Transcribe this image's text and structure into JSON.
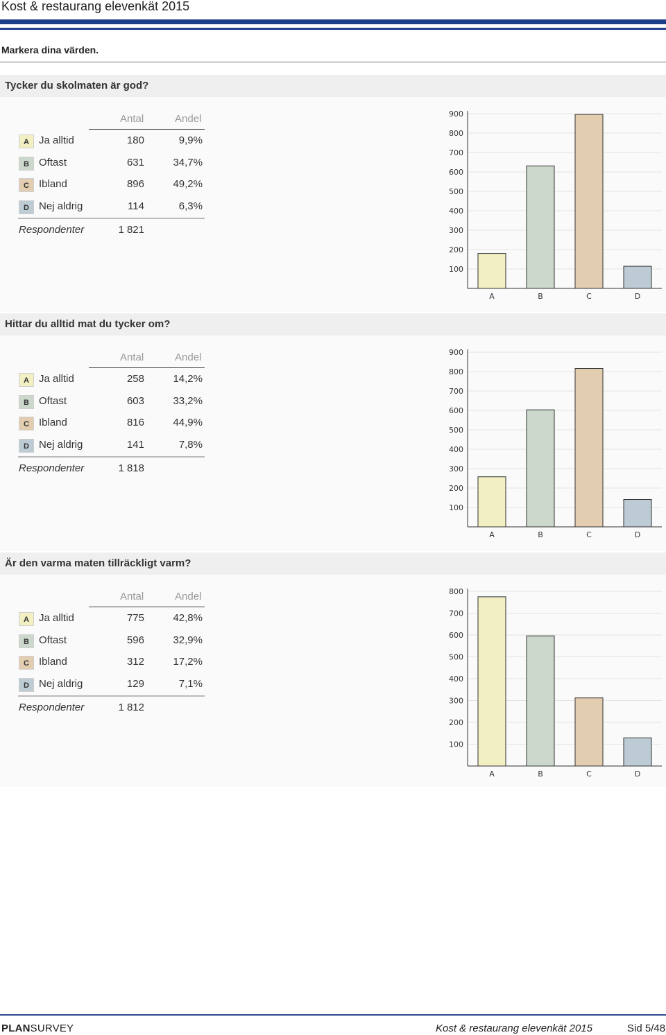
{
  "document": {
    "title": "Kost & restaurang elevenkät 2015",
    "instruction": "Markera dina värden."
  },
  "table_headers": {
    "count": "Antal",
    "share": "Andel",
    "respondents": "Respondenter"
  },
  "colors": {
    "accent": "#1d3f8a",
    "option_A": "#f2efc3",
    "option_B": "#cdd8cc",
    "option_C": "#e3cdb0",
    "option_D": "#bccbd4"
  },
  "questions": [
    {
      "title": "Tycker du skolmaten är god?",
      "options": [
        {
          "code": "A",
          "label": "Ja alltid",
          "count": "180",
          "share": "9,9%"
        },
        {
          "code": "B",
          "label": "Oftast",
          "count": "631",
          "share": "34,7%"
        },
        {
          "code": "C",
          "label": "Ibland",
          "count": "896",
          "share": "49,2%"
        },
        {
          "code": "D",
          "label": "Nej aldrig",
          "count": "114",
          "share": "6,3%"
        }
      ],
      "respondents": "1 821"
    },
    {
      "title": "Hittar du alltid mat du tycker om?",
      "options": [
        {
          "code": "A",
          "label": "Ja alltid",
          "count": "258",
          "share": "14,2%"
        },
        {
          "code": "B",
          "label": "Oftast",
          "count": "603",
          "share": "33,2%"
        },
        {
          "code": "C",
          "label": "Ibland",
          "count": "816",
          "share": "44,9%"
        },
        {
          "code": "D",
          "label": "Nej aldrig",
          "count": "141",
          "share": "7,8%"
        }
      ],
      "respondents": "1 818"
    },
    {
      "title": "Är den varma maten tillräckligt varm?",
      "options": [
        {
          "code": "A",
          "label": "Ja alltid",
          "count": "775",
          "share": "42,8%"
        },
        {
          "code": "B",
          "label": "Oftast",
          "count": "596",
          "share": "32,9%"
        },
        {
          "code": "C",
          "label": "Ibland",
          "count": "312",
          "share": "17,2%"
        },
        {
          "code": "D",
          "label": "Nej aldrig",
          "count": "129",
          "share": "7,1%"
        }
      ],
      "respondents": "1 812"
    }
  ],
  "chart_data": [
    {
      "type": "bar",
      "categories": [
        "A",
        "B",
        "C",
        "D"
      ],
      "values": [
        180,
        631,
        896,
        114
      ],
      "ylim": [
        0,
        900
      ],
      "yticks": [
        100,
        200,
        300,
        400,
        500,
        600,
        700,
        800,
        900
      ],
      "grid": true
    },
    {
      "type": "bar",
      "categories": [
        "A",
        "B",
        "C",
        "D"
      ],
      "values": [
        258,
        603,
        816,
        141
      ],
      "ylim": [
        0,
        900
      ],
      "yticks": [
        100,
        200,
        300,
        400,
        500,
        600,
        700,
        800,
        900
      ],
      "grid": true
    },
    {
      "type": "bar",
      "categories": [
        "A",
        "B",
        "C",
        "D"
      ],
      "values": [
        775,
        596,
        312,
        129
      ],
      "ylim": [
        0,
        800
      ],
      "yticks": [
        100,
        200,
        300,
        400,
        500,
        600,
        700,
        800
      ],
      "grid": true
    }
  ],
  "footer": {
    "brand_bold": "PLAN",
    "brand_rest": "SURVEY",
    "title": "Kost & restaurang elevenkät 2015",
    "page": "Sid 5/48"
  }
}
